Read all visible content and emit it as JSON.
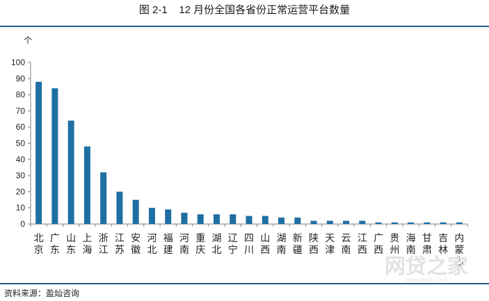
{
  "title": "图 2-1    12 月份全国各省份正常运营平台数量",
  "source": "资料来源：盈灿咨询",
  "watermark_main": "网贷之家",
  "watermark_sub": "www.wdzj.com",
  "colors": {
    "bar": "#1f6fa3",
    "rule": "#1f5f8b",
    "axis": "#808080"
  },
  "chart_data": {
    "type": "bar",
    "title": "",
    "xlabel": "",
    "ylabel": "个",
    "ylim": [
      0,
      100
    ],
    "yticks": [
      0,
      10,
      20,
      30,
      40,
      50,
      60,
      70,
      80,
      90,
      100
    ],
    "grid": false,
    "categories": [
      "北京",
      "广东",
      "山东",
      "上海",
      "浙江",
      "江苏",
      "安徽",
      "河北",
      "福建",
      "河南",
      "重庆",
      "湖北",
      "辽宁",
      "四川",
      "山西",
      "湖南",
      "新疆",
      "陕西",
      "天津",
      "云南",
      "江西",
      "广西",
      "贵州",
      "海南",
      "甘肃",
      "吉林",
      "内蒙古"
    ],
    "values": [
      88,
      84,
      64,
      48,
      32,
      20,
      15,
      10,
      9,
      7,
      6,
      6,
      6,
      5,
      5,
      4,
      4,
      2,
      2,
      2,
      2,
      1,
      1,
      1,
      1,
      1,
      1
    ]
  }
}
